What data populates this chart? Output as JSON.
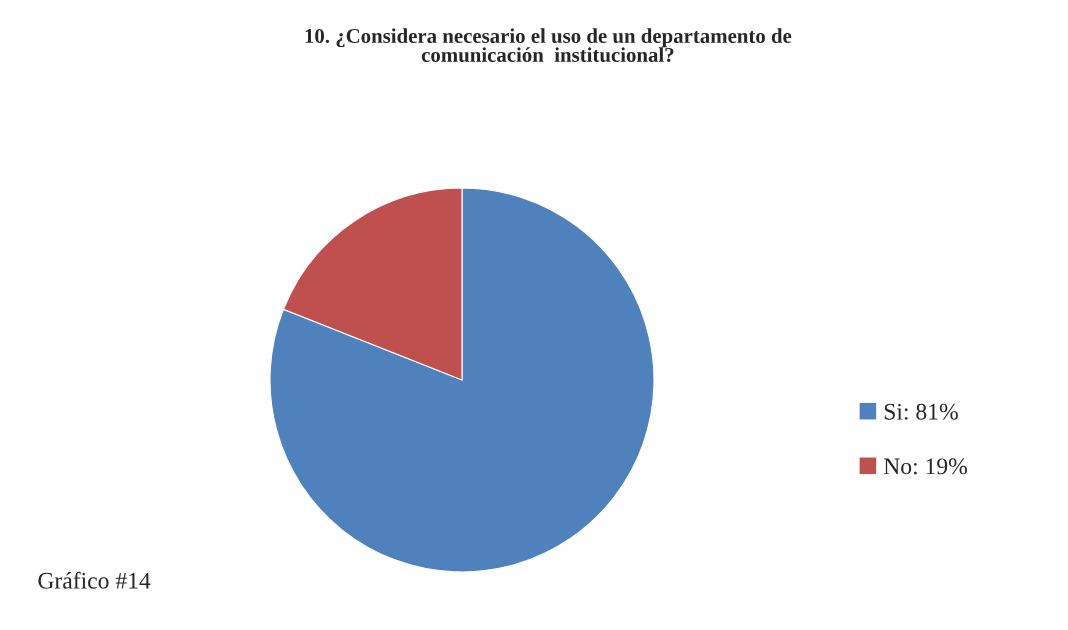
{
  "chart_data": {
    "type": "pie",
    "title": "10. ¿Considera necesario el uso de un departamento de\ncomunicación  institucional?",
    "categories": [
      "Si: 81%",
      "No: 19%"
    ],
    "values": [
      81,
      19
    ],
    "colors": [
      "#4f81bd",
      "#c0504d"
    ],
    "legend": "right",
    "annotations": [
      "Gráfico #14"
    ]
  }
}
